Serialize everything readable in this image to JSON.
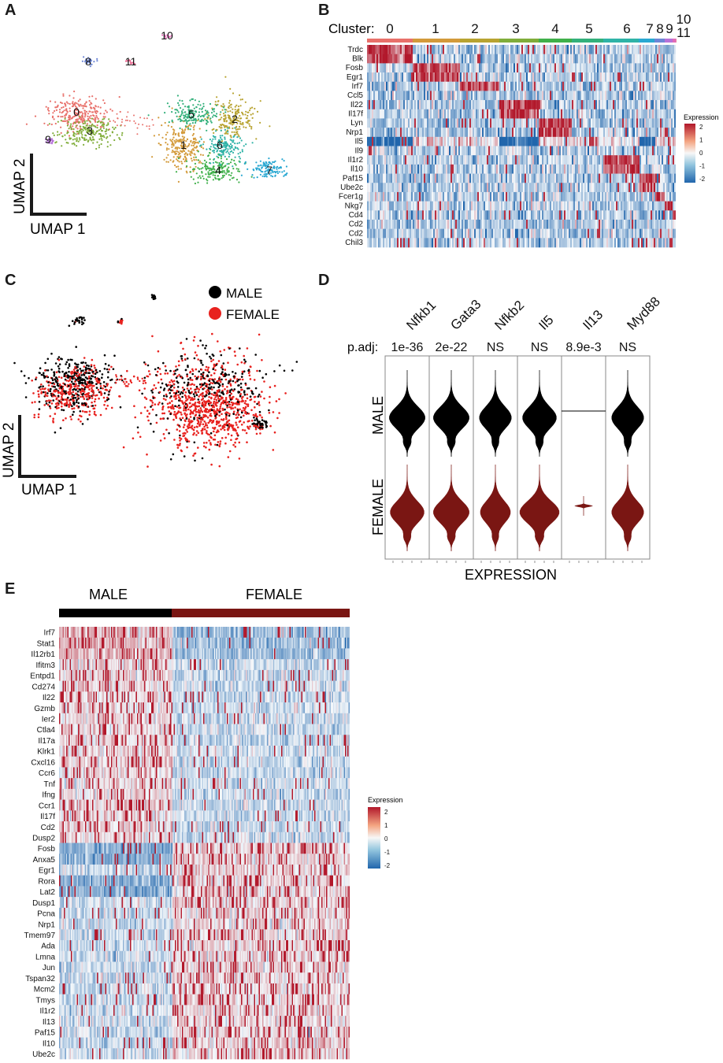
{
  "panel_letters": {
    "a": "A",
    "b": "B",
    "c": "C",
    "d": "D",
    "e": "E"
  },
  "colors": {
    "cluster_palette": [
      "#e8706a",
      "#d39a3a",
      "#b8a331",
      "#80ad3a",
      "#3fb04a",
      "#33b07b",
      "#2fb3a7",
      "#2aa8d2",
      "#6d86d6",
      "#b672d8",
      "#e06bb7",
      "#e8658e"
    ],
    "male": "#000000",
    "female": "#e8221f",
    "violin_male": "#000000",
    "violin_female": "#7a1613",
    "bar_female": "#7a1613",
    "heat_low": "#2166ac",
    "heat_mid": "#f4f8fb",
    "heat_high": "#b2182b"
  },
  "panel_a": {
    "axis_x": "UMAP 1",
    "axis_y": "UMAP 2",
    "cluster_labels": [
      "0",
      "1",
      "2",
      "3",
      "4",
      "5",
      "6",
      "7",
      "8",
      "9",
      "10",
      "11"
    ]
  },
  "panel_b": {
    "cluster_prefix": "Cluster:",
    "cluster_labels": [
      "0",
      "1",
      "2",
      "3",
      "4",
      "5",
      "6",
      "7",
      "8",
      "9",
      "10",
      "11"
    ],
    "genes": [
      "Trdc",
      "Blk",
      "Fosb",
      "Egr1",
      "Irf7",
      "Ccl5",
      "Il22",
      "Il17f",
      "Lyn",
      "Nrp1",
      "Il5",
      "Il9",
      "Il1r2",
      "Il10",
      "Paf15",
      "Ube2c",
      "Fcer1g",
      "Nkg7",
      "Cd4",
      "Cd2",
      "Cd2",
      "Chil3"
    ],
    "legend_title": "Expression",
    "legend_ticks": [
      "2",
      "1",
      "0",
      "-1",
      "-2"
    ]
  },
  "panel_c": {
    "axis_x": "UMAP 1",
    "axis_y": "UMAP 2",
    "legend": [
      {
        "label": "MALE",
        "color": "#000000"
      },
      {
        "label": "FEMALE",
        "color": "#e8221f"
      }
    ]
  },
  "panel_d": {
    "genes": [
      "Nfkb1",
      "Gata3",
      "Nfkb2",
      "Il5",
      "Il13",
      "Myd88"
    ],
    "padj_label": "p.adj:",
    "padj_values": [
      "1e-36",
      "2e-22",
      "NS",
      "NS",
      "8.9e-3",
      "NS"
    ],
    "row_labels": [
      "MALE",
      "FEMALE"
    ],
    "xlabel": "EXPRESSION"
  },
  "panel_e": {
    "groups": [
      "MALE",
      "FEMALE"
    ],
    "genes": [
      "Irf7",
      "Stat1",
      "Il12rb1",
      "Ifitm3",
      "Entpd1",
      "Cd274",
      "Il22",
      "Gzmb",
      "Ier2",
      "Ctla4",
      "Il17a",
      "Klrk1",
      "Cxcl16",
      "Ccr6",
      "Tnf",
      "Ifng",
      "Ccr1",
      "Il17f",
      "Cd2",
      "Dusp2",
      "Fosb",
      "Anxa5",
      "Egr1",
      "Rora",
      "Lat2",
      "Dusp1",
      "Pcna",
      "Nrp1",
      "Tmem97",
      "Ada",
      "Lmna",
      "Jun",
      "Tspan32",
      "Mcm2",
      "Tmys",
      "Il1r2",
      "Il13",
      "Paf15",
      "Il10",
      "Ube2c"
    ],
    "legend_title": "Expression",
    "legend_ticks": [
      "2",
      "1",
      "0",
      "-1",
      "-2"
    ]
  }
}
